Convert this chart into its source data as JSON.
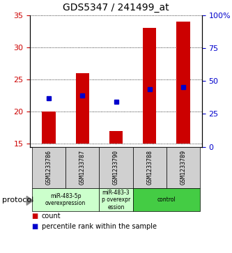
{
  "title": "GDS5347 / 241499_at",
  "samples": [
    "GSM1233786",
    "GSM1233787",
    "GSM1233790",
    "GSM1233788",
    "GSM1233789"
  ],
  "bar_bottoms": [
    15,
    15,
    15,
    15,
    15
  ],
  "bar_tops": [
    20,
    26,
    17,
    33,
    34
  ],
  "percentile_ranks": [
    22,
    22.5,
    21.5,
    23.5,
    23.8
  ],
  "ylim_left": [
    14.5,
    35
  ],
  "ylim_right": [
    0,
    100
  ],
  "yticks_left": [
    15,
    20,
    25,
    30,
    35
  ],
  "yticks_right": [
    0,
    25,
    50,
    75,
    100
  ],
  "ytick_labels_right": [
    "0",
    "25",
    "50",
    "75",
    "100%"
  ],
  "bar_color": "#cc0000",
  "dot_color": "#0000cc",
  "bar_width": 0.4,
  "groups": [
    {
      "label": "miR-483-5p\noverexpression",
      "start": 0,
      "end": 1,
      "color": "#ccffcc"
    },
    {
      "label": "miR-483-3\np overexpr\nession",
      "start": 2,
      "end": 2,
      "color": "#ccffcc"
    },
    {
      "label": "control",
      "start": 3,
      "end": 4,
      "color": "#44cc44"
    }
  ],
  "protocol_label": "protocol",
  "legend_count_label": "count",
  "legend_pct_label": "percentile rank within the sample",
  "tick_label_color_left": "#cc0000",
  "tick_label_color_right": "#0000cc",
  "sample_box_color": "#d0d0d0",
  "xlabel_fontsize": 6.5,
  "ylabel_fontsize": 8,
  "title_fontsize": 10
}
